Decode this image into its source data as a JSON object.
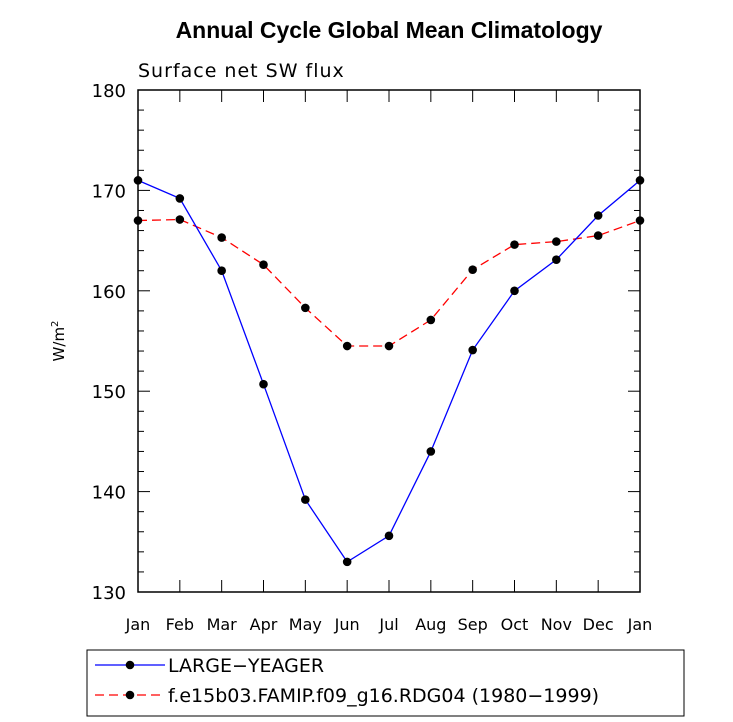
{
  "chart_data": {
    "type": "line",
    "title": "Annual Cycle Global Mean Climatology",
    "subtitle": "Surface net SW flux",
    "xlabel": "",
    "ylabel": "W/m",
    "ylabel_sup": "2",
    "ylim": [
      130,
      180
    ],
    "yticks": [
      130,
      140,
      150,
      160,
      170,
      180
    ],
    "categories": [
      "Jan",
      "Feb",
      "Mar",
      "Apr",
      "May",
      "Jun",
      "Jul",
      "Aug",
      "Sep",
      "Oct",
      "Nov",
      "Dec",
      "Jan"
    ],
    "grid": false,
    "legend_placement": "bottom",
    "series": [
      {
        "name": "LARGE−YEAGER",
        "color": "#0000ff",
        "dash": "solid",
        "marker": "circle",
        "values": [
          171.0,
          169.2,
          162.0,
          150.7,
          139.2,
          133.0,
          135.6,
          144.0,
          154.1,
          160.0,
          163.1,
          167.5,
          171.0
        ]
      },
      {
        "name": "f.e15b03.FAMIP.f09_g16.RDG04 (1980−1999)",
        "color": "#ff0000",
        "dash": "dashed",
        "marker": "circle",
        "values": [
          167.0,
          167.1,
          165.3,
          162.6,
          158.3,
          154.5,
          154.5,
          157.1,
          162.1,
          164.6,
          164.9,
          165.5,
          167.0
        ]
      }
    ]
  }
}
